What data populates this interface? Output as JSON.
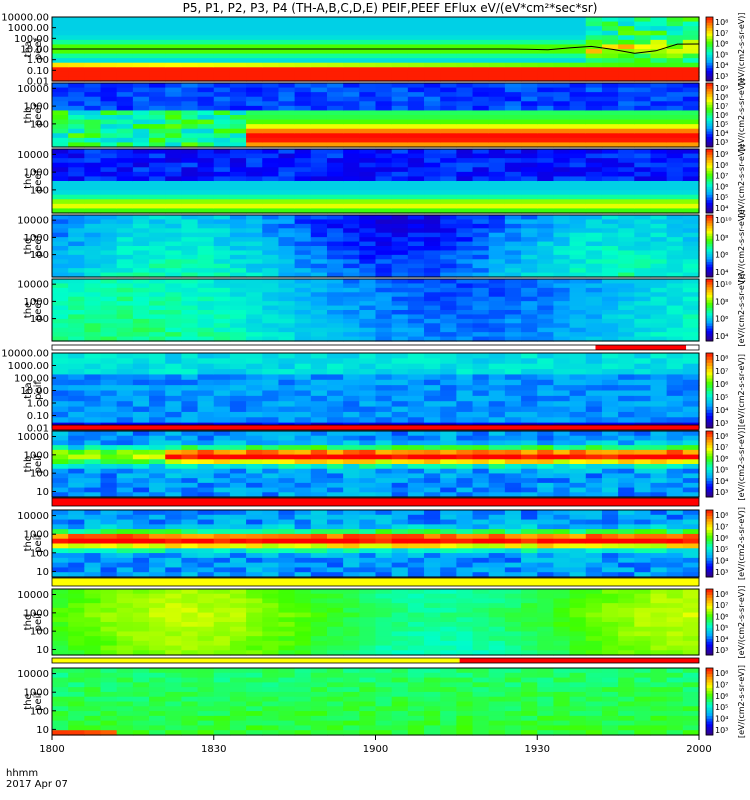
{
  "chart_data": {
    "type": "heatmap",
    "title": "P5, P1, P2, P3, P4 (TH-A,B,C,D,E) PEIF,PEEF EFlux eV/(eV*cm²*sec*sr)",
    "xlabel": "hhmm",
    "date_label": "2017 Apr 07",
    "x_ticks": [
      "1800",
      "1830",
      "1900",
      "1930",
      "2000"
    ],
    "xlim": [
      "18:00",
      "20:00"
    ],
    "colorbar_label": "[eV/(cm2-s-sr-eV)]",
    "colormap": [
      "#30008c",
      "#0000ff",
      "#00aaff",
      "#00ffc8",
      "#40ff00",
      "#ffff00",
      "#ff8800",
      "#ff0000"
    ],
    "panels": [
      {
        "probe": "tha",
        "product": "peef",
        "yscale": "log",
        "ylim": [
          0.01,
          10000
        ],
        "y_ticks": [
          "10000.00",
          "1000.00",
          "100.00",
          "10.00",
          "1.00",
          "0.10",
          "0.01"
        ],
        "cbar_ticks": [
          "10⁸",
          "10⁷",
          "10⁶",
          "10⁵",
          "10⁴",
          "10³"
        ],
        "has_trace": true,
        "trace_color": "#000000"
      },
      {
        "probe": "thb",
        "product": "peef",
        "yscale": "log",
        "ylim": [
          5,
          20000
        ],
        "y_ticks": [
          "10000",
          "1000",
          "100"
        ],
        "cbar_ticks": [
          "10⁹",
          "10⁸",
          "10⁷",
          "10⁶",
          "10⁵",
          "10⁴",
          "10³"
        ]
      },
      {
        "probe": "thc",
        "product": "peef",
        "yscale": "log",
        "ylim": [
          5,
          20000
        ],
        "y_ticks": [
          "10000",
          "1000",
          "100"
        ],
        "cbar_ticks": [
          "10⁹",
          "10⁸",
          "10⁷",
          "10⁶",
          "10⁵",
          "10⁴"
        ]
      },
      {
        "probe": "thd",
        "product": "peef",
        "yscale": "log",
        "ylim": [
          5,
          20000
        ],
        "y_ticks": [
          "10000",
          "1000",
          "100"
        ],
        "cbar_ticks": [
          "10¹⁰",
          "10⁸",
          "10⁶",
          "10⁴"
        ]
      },
      {
        "probe": "the",
        "product": "peef",
        "yscale": "log",
        "ylim": [
          5,
          20000
        ],
        "y_ticks": [
          "10000",
          "1000",
          "100"
        ],
        "cbar_ticks": [
          "10¹⁰",
          "10⁸",
          "10⁶",
          "10⁴"
        ],
        "status_bar": "partial-red"
      },
      {
        "probe": "tha",
        "product": "peif",
        "yscale": "log",
        "ylim": [
          0.01,
          10000
        ],
        "y_ticks": [
          "10000.00",
          "1000.00",
          "100.00",
          "10.00",
          "1.00",
          "0.10",
          "0.01"
        ],
        "cbar_ticks": [
          "10⁸",
          "10⁷",
          "10⁶",
          "10⁵",
          "10⁴",
          "10³"
        ],
        "status_bar": "red"
      },
      {
        "probe": "thb",
        "product": "peif",
        "yscale": "log",
        "ylim": [
          5,
          20000
        ],
        "y_ticks": [
          "10000",
          "1000",
          "100",
          "10"
        ],
        "cbar_ticks": [
          "10⁸",
          "10⁷",
          "10⁶",
          "10⁵",
          "10⁴",
          "10³"
        ],
        "status_bar": "red"
      },
      {
        "probe": "thc",
        "product": "peif",
        "yscale": "log",
        "ylim": [
          5,
          20000
        ],
        "y_ticks": [
          "10000",
          "1000",
          "100",
          "10"
        ],
        "cbar_ticks": [
          "10⁸",
          "10⁷",
          "10⁶",
          "10⁵",
          "10⁴",
          "10³"
        ],
        "status_bar": "yellow"
      },
      {
        "probe": "thd",
        "product": "peif",
        "yscale": "log",
        "ylim": [
          5,
          20000
        ],
        "y_ticks": [
          "10000",
          "1000",
          "100",
          "10"
        ],
        "cbar_ticks": [
          "10⁸",
          "10⁷",
          "10⁶",
          "10⁵",
          "10⁴",
          "10³"
        ],
        "status_bar": "yellow-red"
      },
      {
        "probe": "the",
        "product": "peif",
        "yscale": "log",
        "ylim": [
          5,
          20000
        ],
        "y_ticks": [
          "10000",
          "1000",
          "100",
          "10"
        ],
        "cbar_ticks": [
          "10⁸",
          "10⁷",
          "10⁶",
          "10⁵",
          "10⁴",
          "10³"
        ]
      }
    ]
  }
}
